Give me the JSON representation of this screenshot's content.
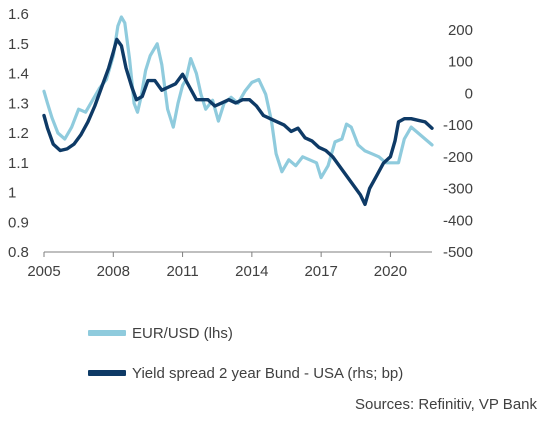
{
  "chart_data": {
    "type": "line",
    "x_axis": {
      "ticks": [
        "2005",
        "2008",
        "2011",
        "2014",
        "2017",
        "2020"
      ],
      "range": [
        2005,
        2021.8
      ]
    },
    "y_left": {
      "ticks": [
        "0.8",
        "0.9",
        "1",
        "1.1",
        "1.2",
        "1.3",
        "1.4",
        "1.5",
        "1.6"
      ],
      "range": [
        0.8,
        1.6
      ]
    },
    "y_right": {
      "ticks": [
        "-500",
        "-400",
        "-300",
        "-200",
        "-100",
        "0",
        "100",
        "200"
      ],
      "range": [
        -500,
        250
      ]
    },
    "grid": false,
    "legend_position": "bottom-left",
    "colors": {
      "eurusd": "#8fcbdd",
      "spread": "#0e3a66",
      "axis": "#7f7f7f"
    },
    "series": [
      {
        "name": "EUR/USD (lhs)",
        "axis": "left",
        "x": [
          2005.0,
          2005.15,
          2005.35,
          2005.6,
          2005.9,
          2006.2,
          2006.5,
          2006.8,
          2007.1,
          2007.4,
          2007.7,
          2008.0,
          2008.2,
          2008.35,
          2008.5,
          2008.7,
          2008.9,
          2009.05,
          2009.2,
          2009.4,
          2009.6,
          2009.9,
          2010.1,
          2010.35,
          2010.6,
          2010.8,
          2011.0,
          2011.15,
          2011.35,
          2011.6,
          2011.8,
          2012.0,
          2012.3,
          2012.55,
          2012.8,
          2013.1,
          2013.4,
          2013.7,
          2014.0,
          2014.3,
          2014.6,
          2014.85,
          2015.05,
          2015.3,
          2015.6,
          2015.9,
          2016.2,
          2016.5,
          2016.8,
          2017.0,
          2017.3,
          2017.6,
          2017.9,
          2018.1,
          2018.3,
          2018.6,
          2018.9,
          2019.2,
          2019.5,
          2019.8,
          2020.1,
          2020.35,
          2020.6,
          2020.9,
          2021.2,
          2021.5,
          2021.8
        ],
        "y": [
          1.34,
          1.3,
          1.25,
          1.2,
          1.18,
          1.22,
          1.28,
          1.27,
          1.31,
          1.35,
          1.38,
          1.46,
          1.56,
          1.59,
          1.57,
          1.45,
          1.3,
          1.27,
          1.32,
          1.41,
          1.46,
          1.5,
          1.43,
          1.28,
          1.22,
          1.3,
          1.36,
          1.38,
          1.45,
          1.4,
          1.33,
          1.28,
          1.31,
          1.24,
          1.3,
          1.32,
          1.3,
          1.34,
          1.37,
          1.38,
          1.33,
          1.24,
          1.13,
          1.07,
          1.11,
          1.09,
          1.12,
          1.11,
          1.1,
          1.05,
          1.09,
          1.17,
          1.18,
          1.23,
          1.22,
          1.16,
          1.14,
          1.13,
          1.12,
          1.1,
          1.1,
          1.1,
          1.18,
          1.22,
          1.2,
          1.18,
          1.16
        ]
      },
      {
        "name": "Yield spread 2 year Bund - USA (rhs; bp)",
        "axis": "right",
        "x": [
          2005.0,
          2005.15,
          2005.4,
          2005.7,
          2006.0,
          2006.3,
          2006.6,
          2006.9,
          2007.2,
          2007.5,
          2007.8,
          2008.0,
          2008.15,
          2008.35,
          2008.55,
          2008.8,
          2009.0,
          2009.25,
          2009.5,
          2009.8,
          2010.1,
          2010.4,
          2010.7,
          2011.0,
          2011.3,
          2011.6,
          2011.85,
          2012.1,
          2012.4,
          2012.7,
          2013.0,
          2013.3,
          2013.6,
          2013.9,
          2014.2,
          2014.5,
          2014.8,
          2015.1,
          2015.4,
          2015.7,
          2016.0,
          2016.3,
          2016.6,
          2016.9,
          2017.2,
          2017.5,
          2017.8,
          2018.1,
          2018.4,
          2018.7,
          2018.9,
          2019.1,
          2019.4,
          2019.7,
          2020.0,
          2020.2,
          2020.35,
          2020.6,
          2020.9,
          2021.2,
          2021.5,
          2021.8
        ],
        "y": [
          -70,
          -110,
          -160,
          -180,
          -175,
          -160,
          -130,
          -90,
          -40,
          20,
          80,
          130,
          170,
          150,
          80,
          20,
          -20,
          -10,
          40,
          40,
          10,
          20,
          30,
          60,
          20,
          -20,
          -20,
          -20,
          -40,
          -30,
          -20,
          -30,
          -20,
          -20,
          -40,
          -70,
          -80,
          -90,
          -100,
          -120,
          -110,
          -140,
          -150,
          -170,
          -180,
          -200,
          -230,
          -260,
          -290,
          -320,
          -350,
          -300,
          -260,
          -220,
          -200,
          -150,
          -90,
          -80,
          -80,
          -85,
          -90,
          -110
        ]
      }
    ]
  },
  "legend": [
    {
      "label": "EUR/USD (lhs)"
    },
    {
      "label": "Yield spread 2 year Bund - USA (rhs; bp)"
    }
  ],
  "source_text": "Sources: Refinitiv, VP Bank"
}
